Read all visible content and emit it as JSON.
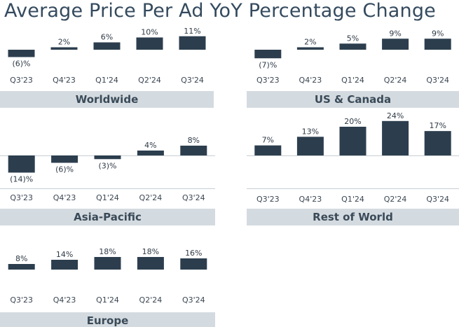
{
  "page": {
    "title": "Average Price Per Ad YoY Percentage Change"
  },
  "colors": {
    "bar": "#2c3e4e",
    "title_band": "#d4dbe0",
    "axis": "#c9ced3"
  },
  "chart_data": [
    {
      "type": "bar",
      "title": "Worldwide",
      "categories": [
        "Q3'23",
        "Q4'23",
        "Q1'24",
        "Q2'24",
        "Q3'24"
      ],
      "values": [
        -6,
        2,
        6,
        10,
        11
      ],
      "labels": [
        "(6)%",
        "2%",
        "6%",
        "10%",
        "11%"
      ]
    },
    {
      "type": "bar",
      "title": "US & Canada",
      "categories": [
        "Q3'23",
        "Q4'23",
        "Q1'24",
        "Q2'24",
        "Q3'24"
      ],
      "values": [
        -7,
        2,
        5,
        9,
        9
      ],
      "labels": [
        "(7)%",
        "2%",
        "5%",
        "9%",
        "9%"
      ]
    },
    {
      "type": "bar",
      "title": "Asia-Pacific",
      "categories": [
        "Q3'23",
        "Q4'23",
        "Q1'24",
        "Q2'24",
        "Q3'24"
      ],
      "values": [
        -14,
        -6,
        -3,
        4,
        8
      ],
      "labels": [
        "(14)%",
        "(6)%",
        "(3)%",
        "4%",
        "8%"
      ]
    },
    {
      "type": "bar",
      "title": "Rest of World",
      "categories": [
        "Q3'23",
        "Q4'23",
        "Q1'24",
        "Q2'24",
        "Q3'24"
      ],
      "values": [
        7,
        13,
        20,
        24,
        17
      ],
      "labels": [
        "7%",
        "13%",
        "20%",
        "24%",
        "17%"
      ]
    },
    {
      "type": "bar",
      "title": "Europe",
      "categories": [
        "Q3'23",
        "Q4'23",
        "Q1'24",
        "Q2'24",
        "Q3'24"
      ],
      "values": [
        8,
        14,
        18,
        18,
        16
      ],
      "labels": [
        "8%",
        "14%",
        "18%",
        "18%",
        "16%"
      ]
    }
  ]
}
